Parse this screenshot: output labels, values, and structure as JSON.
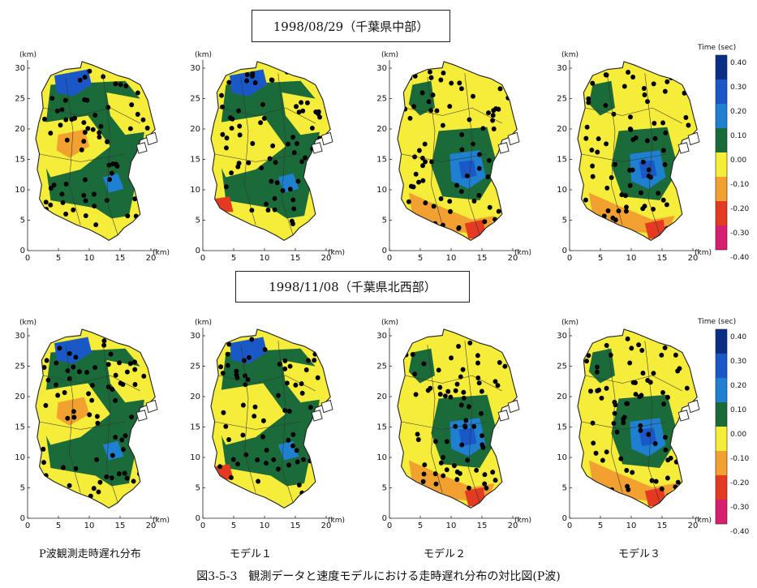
{
  "event1": {
    "title": "1998/08/29（千葉県中部）"
  },
  "event2": {
    "title": "1998/11/08（千葉県北西部）"
  },
  "axes": {
    "unit": "(km)",
    "x_ticks": [
      "0",
      "5",
      "10",
      "15",
      "20"
    ],
    "y_ticks": [
      "0",
      "5",
      "10",
      "15",
      "20",
      "25",
      "30"
    ]
  },
  "legend": {
    "title": "Time (sec)",
    "labels": [
      "0.40",
      "0.30",
      "0.20",
      "0.10",
      "0.00",
      "-0.10",
      "-0.20",
      "-0.30",
      "-0.40"
    ],
    "colors": [
      "#0a2f86",
      "#1b58c7",
      "#1f7fd0",
      "#1b6b3a",
      "#f6ec3a",
      "#f2a030",
      "#e43a22",
      "#d81e6f"
    ]
  },
  "columns": [
    {
      "label": "P波観測走時遅れ分布"
    },
    {
      "label": "モデル１"
    },
    {
      "label": "モデル２"
    },
    {
      "label": "モデル３"
    }
  ],
  "figure_caption": "図3-5-3　観測データと速度モデルにおける走時遅れ分布の対比図(P波)"
}
